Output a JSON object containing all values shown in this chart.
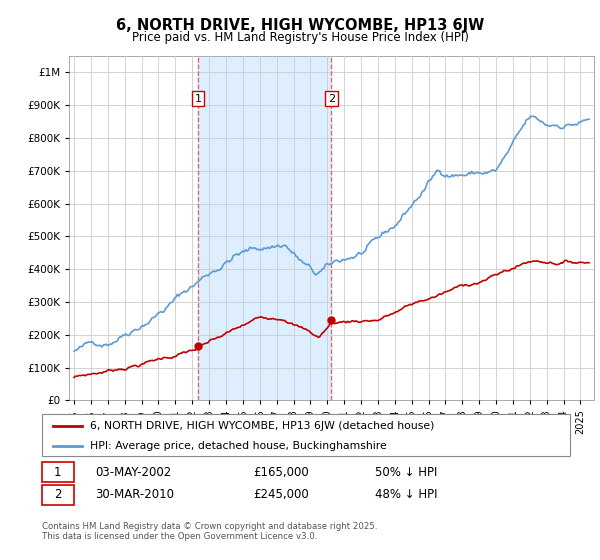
{
  "title": "6, NORTH DRIVE, HIGH WYCOMBE, HP13 6JW",
  "subtitle": "Price paid vs. HM Land Registry's House Price Index (HPI)",
  "hpi_label": "HPI: Average price, detached house, Buckinghamshire",
  "property_label": "6, NORTH DRIVE, HIGH WYCOMBE, HP13 6JW (detached house)",
  "footnote": "Contains HM Land Registry data © Crown copyright and database right 2025.\nThis data is licensed under the Open Government Licence v3.0.",
  "marker1": {
    "date_str": "03-MAY-2002",
    "price": 165000,
    "pct": "50% ↓ HPI",
    "x_year": 2002.34
  },
  "marker2": {
    "date_str": "30-MAR-2010",
    "price": 245000,
    "pct": "48% ↓ HPI",
    "x_year": 2010.24
  },
  "hpi_color": "#5b9bd5",
  "property_color": "#c00000",
  "dashed_color": "#e06060",
  "shade_color": "#ddeeff",
  "bg_color": "#ffffff",
  "grid_color": "#cccccc",
  "ylim": [
    0,
    1050000
  ],
  "xlim_start": 1994.7,
  "xlim_end": 2025.8,
  "yticks": [
    0,
    100000,
    200000,
    300000,
    400000,
    500000,
    600000,
    700000,
    800000,
    900000,
    1000000
  ]
}
